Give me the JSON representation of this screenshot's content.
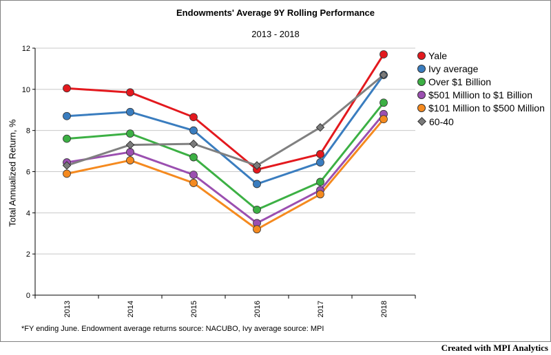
{
  "chart_data": {
    "type": "line",
    "title": "Endowments' Average 9Y Rolling Performance",
    "subtitle": "2013 - 2018",
    "ylabel": "Total Annualized Return, %",
    "xlabel": "",
    "categories": [
      "2013",
      "2014",
      "2015",
      "2016",
      "2017",
      "2018"
    ],
    "ylim": [
      0,
      12
    ],
    "yticks": [
      0,
      2,
      4,
      6,
      8,
      10,
      12
    ],
    "grid": "horizontal",
    "legend_position": "right",
    "series": [
      {
        "name": "Yale",
        "color": "#e3191e",
        "marker": "circle",
        "values": [
          10.05,
          9.85,
          8.65,
          6.1,
          6.85,
          11.7
        ]
      },
      {
        "name": "Ivy average",
        "color": "#3a7dbf",
        "marker": "circle",
        "values": [
          8.7,
          8.9,
          8.0,
          5.4,
          6.45,
          10.7
        ]
      },
      {
        "name": "Over $1 Billion",
        "color": "#3cb044",
        "marker": "circle",
        "values": [
          7.6,
          7.85,
          6.7,
          4.15,
          5.5,
          9.35
        ]
      },
      {
        "name": "$501 Million to $1 Billion",
        "color": "#9b4fb0",
        "marker": "circle",
        "values": [
          6.45,
          6.95,
          5.85,
          3.5,
          5.1,
          8.8
        ]
      },
      {
        "name": "$101 Million to $500 Million",
        "color": "#f58a1f",
        "marker": "circle",
        "values": [
          5.9,
          6.55,
          5.45,
          3.2,
          4.9,
          8.55
        ]
      },
      {
        "name": "60-40",
        "color": "#808080",
        "marker": "diamond",
        "values": [
          6.3,
          7.3,
          7.35,
          6.3,
          8.15,
          10.7
        ]
      }
    ]
  },
  "footnote": "*FY ending June. Endowment average returns source: NACUBO, Ivy average source: MPI",
  "credit": "Created with MPI Analytics"
}
